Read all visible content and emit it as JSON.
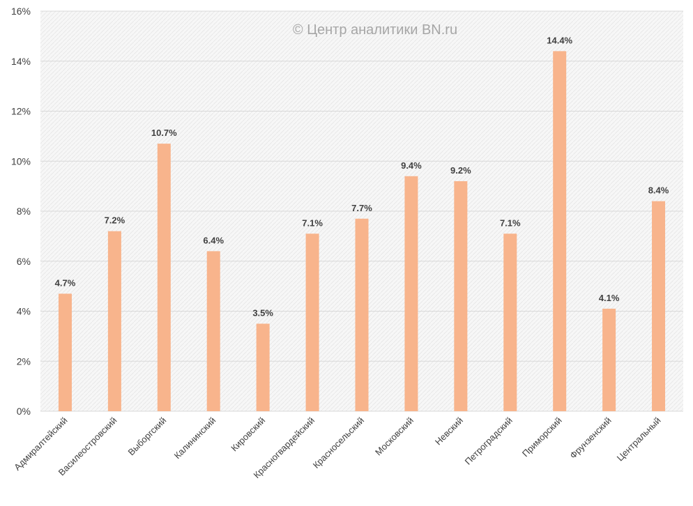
{
  "watermark": "© Центр аналитики BN.ru",
  "colors": {
    "bar": "#f8b48c",
    "plot_bg": "#f2f2f2",
    "grid": "#d9d9d9",
    "text": "#404040"
  },
  "chart_data": {
    "type": "bar",
    "categories": [
      "Адмиралтейский",
      "Василеостровский",
      "Выборгский",
      "Калининский",
      "Кировский",
      "Красногвардейский",
      "Красносельский",
      "Московский",
      "Невский",
      "Петроградский",
      "Приморский",
      "Фрунзенский",
      "Центральный"
    ],
    "values": [
      4.7,
      7.2,
      10.7,
      6.4,
      3.5,
      7.1,
      7.7,
      9.4,
      9.2,
      7.1,
      14.4,
      4.1,
      8.4
    ],
    "data_labels": [
      "4.7%",
      "7.2%",
      "10.7%",
      "6.4%",
      "3.5%",
      "7.1%",
      "7.7%",
      "9.4%",
      "9.2%",
      "7.1%",
      "14.4%",
      "4.1%",
      "8.4%"
    ],
    "y_ticks": [
      0,
      2,
      4,
      6,
      8,
      10,
      12,
      14,
      16
    ],
    "y_tick_labels": [
      "0%",
      "2%",
      "4%",
      "6%",
      "8%",
      "10%",
      "12%",
      "14%",
      "16%"
    ],
    "ylim": [
      0,
      16
    ],
    "grid": true,
    "legend": "none"
  }
}
